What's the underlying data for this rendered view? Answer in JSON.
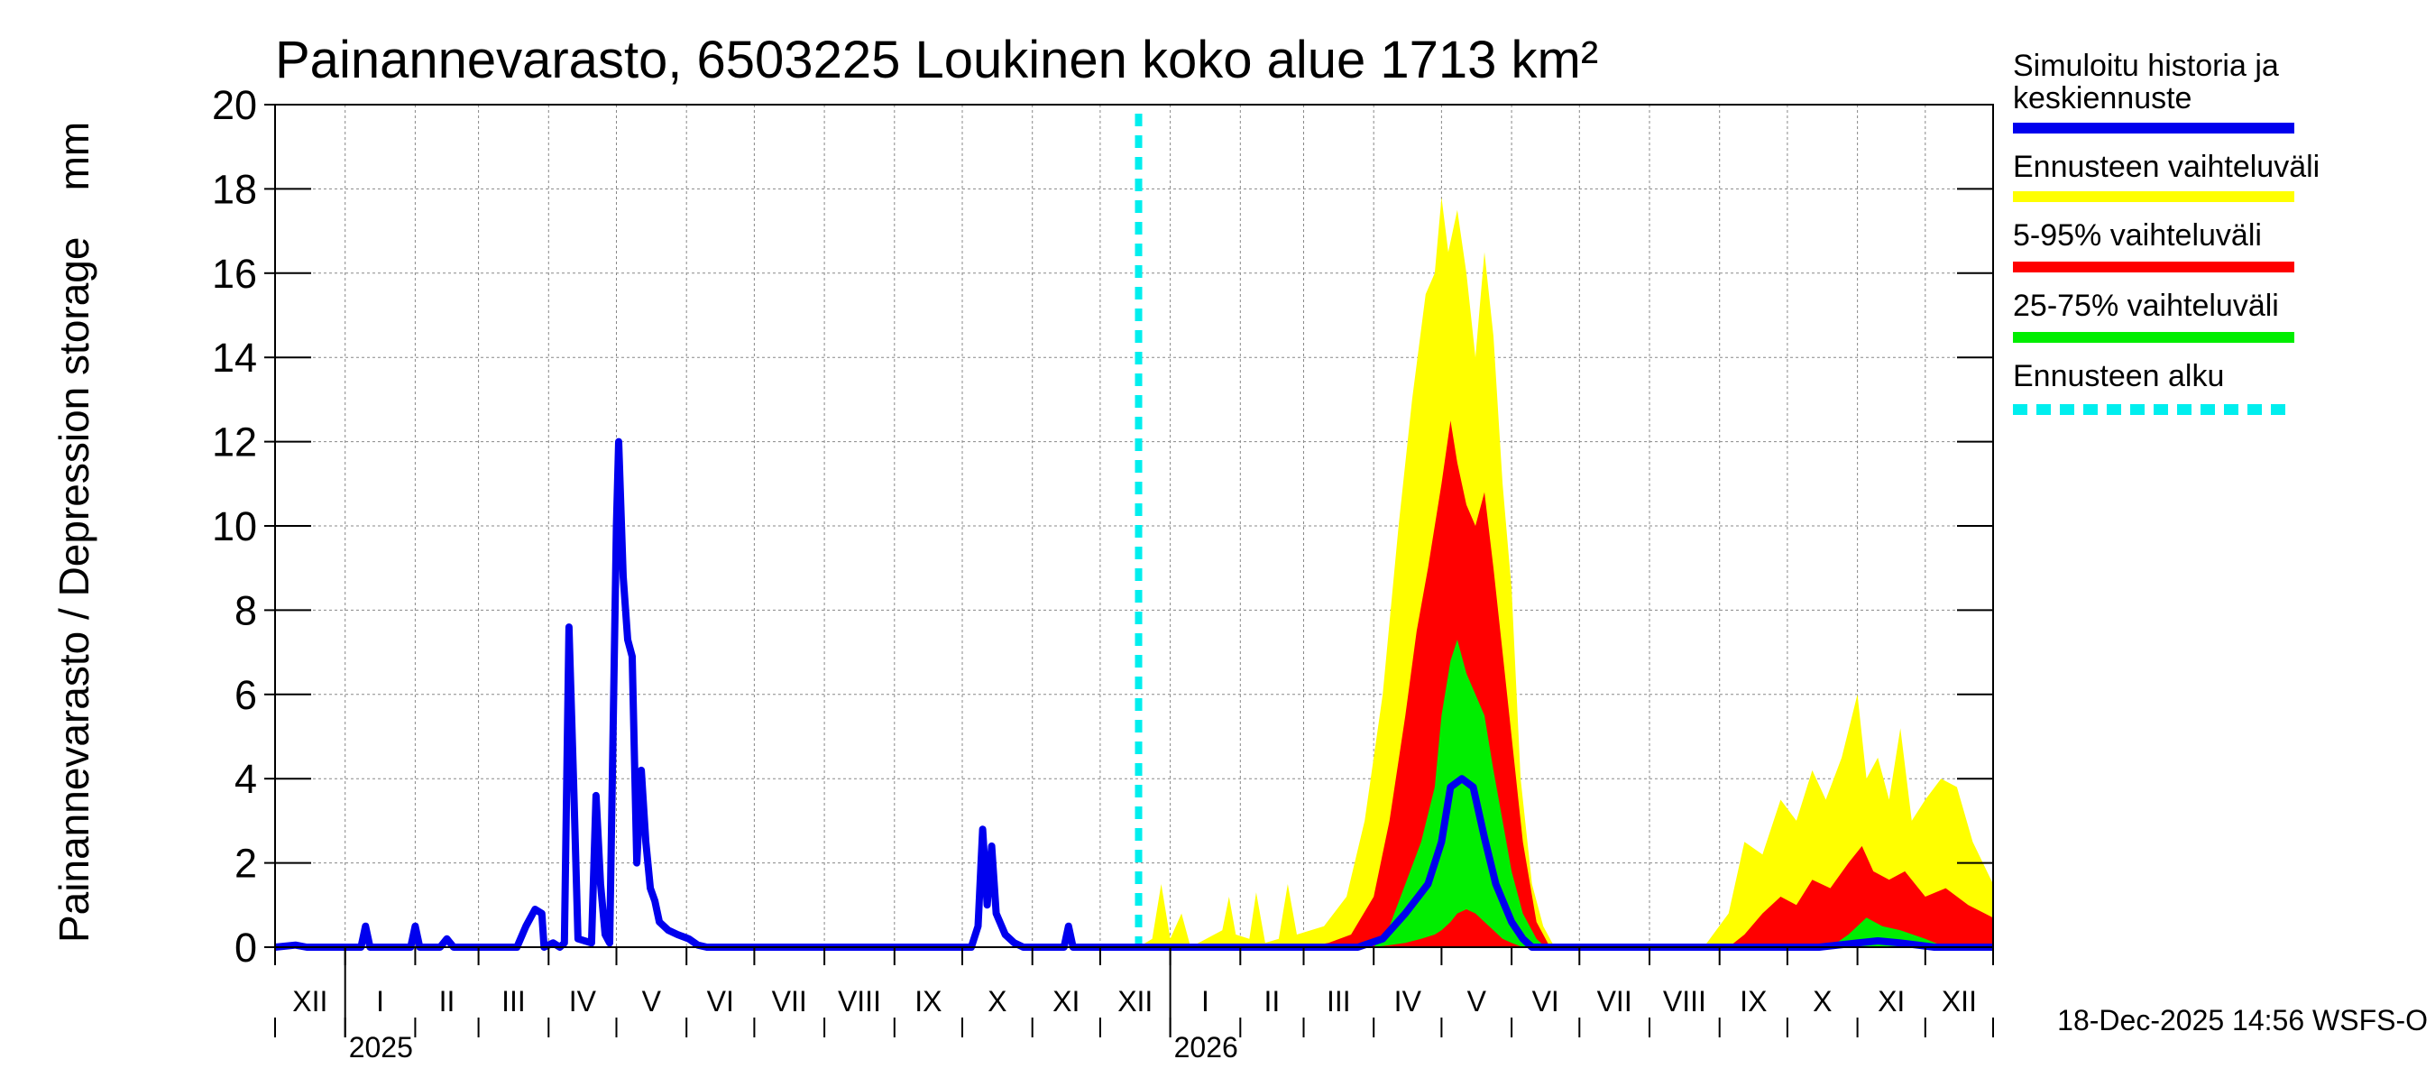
{
  "chart_data": {
    "type": "area",
    "title": "Painannevarasto, 6503225 Loukinen koko alue 1713 km²",
    "ylabel": "Painannevarasto / Depression storage    mm",
    "ylim": [
      0,
      20
    ],
    "yticks": [
      0,
      2,
      4,
      6,
      8,
      10,
      12,
      14,
      16,
      18,
      20
    ],
    "x_start": "2024-12-01",
    "x_end": "2026-12-31",
    "forecast_start": "2025-12-18",
    "months": [
      "XII",
      "I",
      "II",
      "III",
      "IV",
      "V",
      "VI",
      "VII",
      "VIII",
      "IX",
      "X",
      "XI",
      "XII",
      "I",
      "II",
      "III",
      "IV",
      "V",
      "VI",
      "VII",
      "VIII",
      "IX",
      "X",
      "XI",
      "XII"
    ],
    "years": [
      {
        "label": "2025",
        "date": "2025-01-01"
      },
      {
        "label": "2026",
        "date": "2026-01-01"
      }
    ],
    "legend": [
      {
        "label": "Simuloitu historia ja keskiennuste",
        "color": "#0000ee"
      },
      {
        "label": "Ennusteen vaihteluväli",
        "color": "#ffff00"
      },
      {
        "label": "5-95% vaihteluväli",
        "color": "#ff0000"
      },
      {
        "label": "25-75% vaihteluväli",
        "color": "#00ee00"
      },
      {
        "label": "Ennusteen alku",
        "color": "#00eeee"
      }
    ],
    "series": [
      {
        "name": "Simuloitu historia ja keskiennuste",
        "color": "#0000ee",
        "points": [
          [
            "2024-12-01",
            0
          ],
          [
            "2024-12-10",
            0.05
          ],
          [
            "2024-12-15",
            0
          ],
          [
            "2025-01-08",
            0
          ],
          [
            "2025-01-10",
            0.5
          ],
          [
            "2025-01-12",
            0
          ],
          [
            "2025-01-30",
            0
          ],
          [
            "2025-02-01",
            0.5
          ],
          [
            "2025-02-03",
            0
          ],
          [
            "2025-02-12",
            0
          ],
          [
            "2025-02-15",
            0.2
          ],
          [
            "2025-02-18",
            0
          ],
          [
            "2025-03-18",
            0
          ],
          [
            "2025-03-22",
            0.5
          ],
          [
            "2025-03-26",
            0.9
          ],
          [
            "2025-03-29",
            0.8
          ],
          [
            "2025-03-30",
            0
          ],
          [
            "2025-04-03",
            0.1
          ],
          [
            "2025-04-06",
            0
          ],
          [
            "2025-04-08",
            0.1
          ],
          [
            "2025-04-10",
            7.6
          ],
          [
            "2025-04-12",
            4.0
          ],
          [
            "2025-04-14",
            0.2
          ],
          [
            "2025-04-20",
            0.1
          ],
          [
            "2025-04-22",
            3.6
          ],
          [
            "2025-04-24",
            1.5
          ],
          [
            "2025-04-26",
            0.3
          ],
          [
            "2025-04-28",
            0.1
          ],
          [
            "2025-05-01",
            10.0
          ],
          [
            "2025-05-02",
            12.0
          ],
          [
            "2025-05-04",
            8.8
          ],
          [
            "2025-05-06",
            7.3
          ],
          [
            "2025-05-08",
            6.9
          ],
          [
            "2025-05-10",
            2.0
          ],
          [
            "2025-05-12",
            4.2
          ],
          [
            "2025-05-14",
            2.5
          ],
          [
            "2025-05-16",
            1.4
          ],
          [
            "2025-05-18",
            1.1
          ],
          [
            "2025-05-20",
            0.6
          ],
          [
            "2025-05-24",
            0.4
          ],
          [
            "2025-05-28",
            0.3
          ],
          [
            "2025-06-02",
            0.2
          ],
          [
            "2025-06-06",
            0.05
          ],
          [
            "2025-06-10",
            0
          ],
          [
            "2025-10-05",
            0
          ],
          [
            "2025-10-08",
            0.5
          ],
          [
            "2025-10-10",
            2.8
          ],
          [
            "2025-10-12",
            1.0
          ],
          [
            "2025-10-14",
            2.4
          ],
          [
            "2025-10-16",
            0.8
          ],
          [
            "2025-10-20",
            0.3
          ],
          [
            "2025-10-24",
            0.1
          ],
          [
            "2025-10-28",
            0
          ],
          [
            "2025-11-15",
            0
          ],
          [
            "2025-11-17",
            0.5
          ],
          [
            "2025-11-19",
            0
          ],
          [
            "2025-12-18",
            0
          ],
          [
            "2026-03-25",
            0
          ],
          [
            "2026-04-05",
            0.2
          ],
          [
            "2026-04-15",
            0.8
          ],
          [
            "2026-04-25",
            1.5
          ],
          [
            "2026-05-01",
            2.5
          ],
          [
            "2026-05-05",
            3.8
          ],
          [
            "2026-05-10",
            4.0
          ],
          [
            "2026-05-15",
            3.8
          ],
          [
            "2026-05-20",
            2.6
          ],
          [
            "2026-05-25",
            1.5
          ],
          [
            "2026-06-01",
            0.6
          ],
          [
            "2026-06-06",
            0.2
          ],
          [
            "2026-06-10",
            0
          ],
          [
            "2026-10-15",
            0
          ],
          [
            "2026-11-01",
            0.1
          ],
          [
            "2026-11-10",
            0.15
          ],
          [
            "2026-11-20",
            0.1
          ],
          [
            "2026-12-05",
            0
          ],
          [
            "2026-12-31",
            0
          ]
        ]
      },
      {
        "name": "Ennusteen vaihteluväli",
        "color": "#ffff00",
        "lower": 0,
        "points": [
          [
            "2025-12-18",
            0
          ],
          [
            "2025-12-24",
            0.2
          ],
          [
            "2025-12-28",
            1.5
          ],
          [
            "2026-01-01",
            0.2
          ],
          [
            "2026-01-06",
            0.8
          ],
          [
            "2026-01-10",
            0
          ],
          [
            "2026-01-24",
            0.4
          ],
          [
            "2026-01-27",
            1.2
          ],
          [
            "2026-01-30",
            0.3
          ],
          [
            "2026-02-05",
            0.2
          ],
          [
            "2026-02-08",
            1.3
          ],
          [
            "2026-02-12",
            0.1
          ],
          [
            "2026-02-18",
            0.2
          ],
          [
            "2026-02-22",
            1.5
          ],
          [
            "2026-02-26",
            0.3
          ],
          [
            "2026-03-10",
            0.5
          ],
          [
            "2026-03-20",
            1.2
          ],
          [
            "2026-03-28",
            3.0
          ],
          [
            "2026-04-05",
            6.0
          ],
          [
            "2026-04-12",
            10.0
          ],
          [
            "2026-04-18",
            13.0
          ],
          [
            "2026-04-24",
            15.5
          ],
          [
            "2026-04-28",
            16.0
          ],
          [
            "2026-05-01",
            17.8
          ],
          [
            "2026-05-04",
            16.5
          ],
          [
            "2026-05-08",
            17.5
          ],
          [
            "2026-05-12",
            16.0
          ],
          [
            "2026-05-16",
            14.0
          ],
          [
            "2026-05-20",
            16.5
          ],
          [
            "2026-05-24",
            14.5
          ],
          [
            "2026-05-28",
            11.0
          ],
          [
            "2026-06-01",
            8.5
          ],
          [
            "2026-06-05",
            4.0
          ],
          [
            "2026-06-10",
            1.5
          ],
          [
            "2026-06-15",
            0.5
          ],
          [
            "2026-06-20",
            0
          ],
          [
            "2026-08-25",
            0
          ],
          [
            "2026-09-05",
            0.8
          ],
          [
            "2026-09-12",
            2.5
          ],
          [
            "2026-09-20",
            2.2
          ],
          [
            "2026-09-28",
            3.5
          ],
          [
            "2026-10-05",
            3.0
          ],
          [
            "2026-10-12",
            4.2
          ],
          [
            "2026-10-18",
            3.5
          ],
          [
            "2026-10-25",
            4.5
          ],
          [
            "2026-11-01",
            6.0
          ],
          [
            "2026-11-05",
            4.0
          ],
          [
            "2026-11-10",
            4.5
          ],
          [
            "2026-11-15",
            3.5
          ],
          [
            "2026-11-20",
            5.2
          ],
          [
            "2026-11-25",
            3.0
          ],
          [
            "2026-12-01",
            3.5
          ],
          [
            "2026-12-08",
            4.0
          ],
          [
            "2026-12-15",
            3.8
          ],
          [
            "2026-12-22",
            2.5
          ],
          [
            "2026-12-31",
            1.5
          ]
        ]
      },
      {
        "name": "5-95% vaihteluväli",
        "color": "#ff0000",
        "lower": 0,
        "points": [
          [
            "2026-03-01",
            0
          ],
          [
            "2026-03-12",
            0.1
          ],
          [
            "2026-03-22",
            0.3
          ],
          [
            "2026-04-01",
            1.2
          ],
          [
            "2026-04-08",
            3.0
          ],
          [
            "2026-04-15",
            5.5
          ],
          [
            "2026-04-20",
            7.5
          ],
          [
            "2026-04-25",
            9.0
          ],
          [
            "2026-05-01",
            11.0
          ],
          [
            "2026-05-05",
            12.5
          ],
          [
            "2026-05-08",
            11.5
          ],
          [
            "2026-05-12",
            10.5
          ],
          [
            "2026-05-16",
            10.0
          ],
          [
            "2026-05-20",
            10.8
          ],
          [
            "2026-05-24",
            9.0
          ],
          [
            "2026-05-28",
            7.0
          ],
          [
            "2026-06-01",
            5.0
          ],
          [
            "2026-06-06",
            2.5
          ],
          [
            "2026-06-12",
            0.6
          ],
          [
            "2026-06-18",
            0
          ],
          [
            "2026-09-05",
            0
          ],
          [
            "2026-09-12",
            0.3
          ],
          [
            "2026-09-20",
            0.8
          ],
          [
            "2026-09-28",
            1.2
          ],
          [
            "2026-10-05",
            1.0
          ],
          [
            "2026-10-12",
            1.6
          ],
          [
            "2026-10-20",
            1.4
          ],
          [
            "2026-10-28",
            2.0
          ],
          [
            "2026-11-03",
            2.4
          ],
          [
            "2026-11-08",
            1.8
          ],
          [
            "2026-11-15",
            1.6
          ],
          [
            "2026-11-22",
            1.8
          ],
          [
            "2026-12-01",
            1.2
          ],
          [
            "2026-12-10",
            1.4
          ],
          [
            "2026-12-20",
            1.0
          ],
          [
            "2026-12-31",
            0.7
          ]
        ]
      },
      {
        "name": "25-75% vaihteluväli",
        "color": "#00ee00",
        "points": [
          [
            "2026-04-01",
            0,
            0
          ],
          [
            "2026-04-08",
            0.05,
            0.5
          ],
          [
            "2026-04-15",
            0.1,
            1.5
          ],
          [
            "2026-04-22",
            0.2,
            2.5
          ],
          [
            "2026-04-28",
            0.3,
            3.8
          ],
          [
            "2026-05-01",
            0.4,
            5.5
          ],
          [
            "2026-05-05",
            0.6,
            6.8
          ],
          [
            "2026-05-08",
            0.8,
            7.3
          ],
          [
            "2026-05-12",
            0.9,
            6.5
          ],
          [
            "2026-05-16",
            0.8,
            6.0
          ],
          [
            "2026-05-20",
            0.6,
            5.5
          ],
          [
            "2026-05-24",
            0.4,
            4.2
          ],
          [
            "2026-05-28",
            0.2,
            3.0
          ],
          [
            "2026-06-01",
            0.1,
            1.8
          ],
          [
            "2026-06-06",
            0,
            0.8
          ],
          [
            "2026-06-12",
            0,
            0.2
          ],
          [
            "2026-06-16",
            0,
            0
          ],
          [
            "2026-10-20",
            0,
            0
          ],
          [
            "2026-10-28",
            0,
            0.3
          ],
          [
            "2026-11-05",
            0,
            0.7
          ],
          [
            "2026-11-12",
            0,
            0.5
          ],
          [
            "2026-11-20",
            0,
            0.4
          ],
          [
            "2026-12-01",
            0,
            0.2
          ],
          [
            "2026-12-10",
            0,
            0
          ],
          [
            "2026-12-31",
            0,
            0
          ]
        ]
      }
    ]
  },
  "footer": {
    "timestamp": "18-Dec-2025 14:56 WSFS-O"
  }
}
